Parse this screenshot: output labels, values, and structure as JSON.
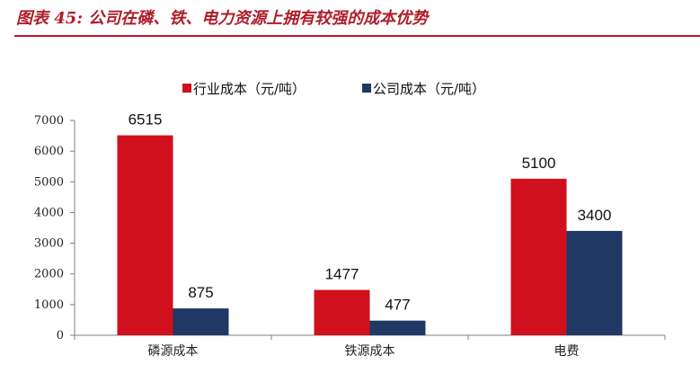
{
  "figure_title": "图表 45: 公司在磷、铁、电力资源上拥有较强的成本优势",
  "colors": {
    "industry": "#d0101c",
    "company": "#203864",
    "accent": "#b01d2a"
  },
  "chart_data": {
    "type": "bar",
    "categories": [
      "磷源成本",
      "铁源成本",
      "电费"
    ],
    "series": [
      {
        "name": "行业成本（元/吨）",
        "values": [
          6515,
          1477,
          5100
        ]
      },
      {
        "name": "公司成本（元/吨）",
        "values": [
          875,
          477,
          3400
        ]
      }
    ],
    "ylim": [
      0,
      7000
    ],
    "yticks": [
      0,
      1000,
      2000,
      3000,
      4000,
      5000,
      6000,
      7000
    ],
    "xlabel": "",
    "ylabel": "",
    "legend": "top-left",
    "grid": false,
    "data_labels": true
  }
}
